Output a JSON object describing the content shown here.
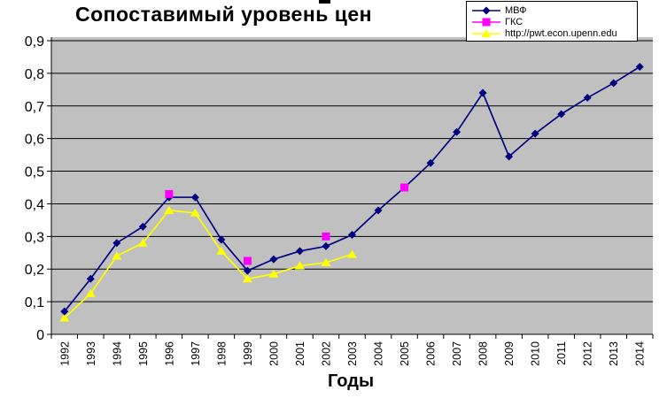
{
  "chart_data": {
    "type": "line",
    "title": "Сопоставимый уровень цен",
    "xlabel": "Годы",
    "ylabel": "",
    "ylim": [
      0,
      0.9
    ],
    "ytick_step": 0.1,
    "y_tick_labels": [
      "0",
      "0,1",
      "0,2",
      "0,3",
      "0,4",
      "0,5",
      "0,6",
      "0,7",
      "0,8",
      "0,9"
    ],
    "grid": true,
    "legend_position": "top-right",
    "plot_background": "#C0C0C0",
    "grid_color": "#000000",
    "categories": [
      1992,
      1993,
      1994,
      1995,
      1996,
      1997,
      1998,
      1999,
      2000,
      2001,
      2002,
      2003,
      2004,
      2005,
      2006,
      2007,
      2008,
      2009,
      2010,
      2011,
      2012,
      2013,
      2014
    ],
    "series": [
      {
        "id": "mvf",
        "name": "МВФ",
        "color": "#000080",
        "marker": "diamond",
        "line": true,
        "values": [
          0.07,
          0.17,
          0.28,
          0.33,
          0.42,
          0.42,
          0.29,
          0.195,
          0.23,
          0.255,
          0.27,
          0.305,
          0.38,
          0.45,
          0.525,
          0.62,
          0.74,
          0.545,
          0.615,
          0.675,
          0.725,
          0.77,
          0.82
        ]
      },
      {
        "id": "gks",
        "name": "ГКС",
        "color": "#FF00FF",
        "marker": "square",
        "line": false,
        "values": [
          null,
          null,
          null,
          null,
          0.43,
          null,
          null,
          0.225,
          null,
          null,
          0.3,
          null,
          null,
          0.45,
          null,
          null,
          null,
          null,
          null,
          null,
          null,
          null,
          null
        ]
      },
      {
        "id": "pwt",
        "name": "http://pwt.econ.upenn.edu",
        "color": "#FFFF00",
        "marker": "triangle",
        "line": true,
        "values": [
          0.05,
          0.125,
          0.24,
          0.28,
          0.38,
          0.372,
          0.255,
          0.17,
          0.185,
          0.21,
          0.22,
          0.245,
          null,
          null,
          null,
          null,
          null,
          null,
          null,
          null,
          null,
          null,
          null
        ]
      }
    ]
  }
}
